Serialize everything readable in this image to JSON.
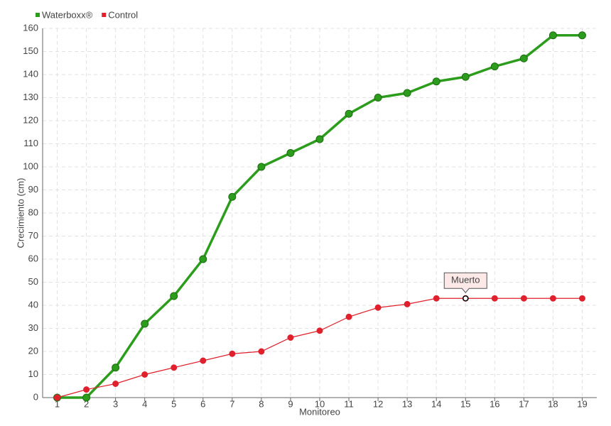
{
  "chart_data": {
    "type": "line",
    "x_label": "Monitoreo",
    "y_label": "Crecimiento (cm)",
    "categories": [
      "1",
      "2",
      "3",
      "4",
      "5",
      "6",
      "7",
      "8",
      "9",
      "10",
      "11",
      "12",
      "13",
      "14",
      "15",
      "16",
      "17",
      "18",
      "19"
    ],
    "series": [
      {
        "name": "Waterboxx®",
        "color": "#2c9c1c",
        "values": [
          0,
          0,
          13,
          32,
          44,
          60,
          87,
          100,
          106,
          112,
          123,
          130,
          132,
          137,
          139,
          143.5,
          147,
          157,
          157
        ]
      },
      {
        "name": "Control",
        "color": "#e0202c",
        "values": [
          0,
          3.5,
          6,
          10,
          13,
          16,
          19,
          20,
          26,
          29,
          35,
          39,
          40.5,
          43,
          43,
          43,
          43,
          43,
          43
        ]
      }
    ],
    "annotations": [
      {
        "text": "Muerto",
        "x": "15"
      }
    ],
    "ylim": [
      0,
      160
    ],
    "yticks": [
      0,
      10,
      20,
      30,
      40,
      50,
      60,
      70,
      80,
      90,
      100,
      110,
      120,
      130,
      140,
      150,
      160
    ],
    "grid": true,
    "legend": "top-left"
  }
}
